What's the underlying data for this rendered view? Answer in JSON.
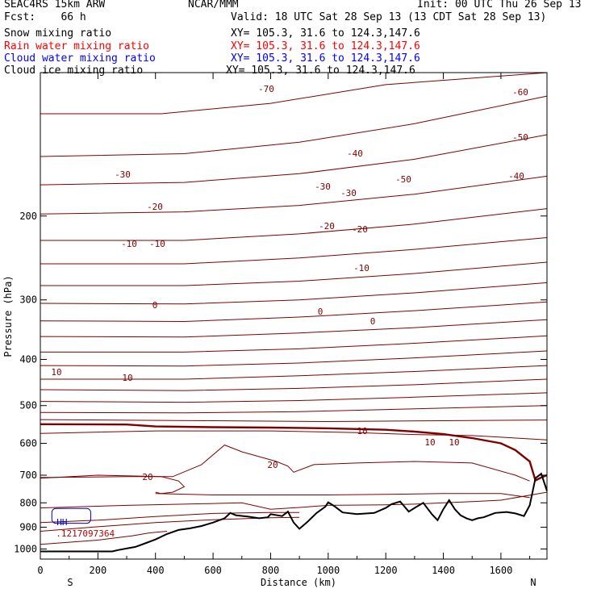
{
  "header": {
    "model": "SEAC4RS 15km ARW",
    "org": "NCAR/MMM",
    "init": "Init: 00 UTC Thu 26 Sep 13",
    "fcst": "Fcst:    66 h",
    "valid": "Valid: 18 UTC Sat 28 Sep 13 (13 CDT Sat 28 Sep 13)"
  },
  "fields": [
    {
      "name": "Snow mixing ratio",
      "xy": "XY= 105.3, 31.6 to 124.3,147.6",
      "color": "#000000"
    },
    {
      "name": "Rain water mixing ratio",
      "xy": "XY= 105.3, 31.6 to 124.3,147.6",
      "color": "#ff0000"
    },
    {
      "name": "Cloud water mixing ratio",
      "xy": "XY= 105.3, 31.6 to 124.3,147.6",
      "color": "#0000ff"
    },
    {
      "name": "Cloud ice mixing ratio",
      "xy": "XY= 105.3, 31.6 to 124.3,147.6",
      "color": "#000000"
    }
  ],
  "chart_data": {
    "type": "line",
    "xlabel": "Distance (km)",
    "ylabel": "Pressure (hPa)",
    "xlim": [
      0,
      1760
    ],
    "ylim": [
      1050,
      100
    ],
    "xticks": [
      "0",
      "200",
      "400",
      "600",
      "800",
      "1000",
      "1200",
      "1400",
      "1600"
    ],
    "yticks": [
      "200",
      "300",
      "400",
      "500",
      "600",
      "700",
      "800",
      "900",
      "1000"
    ],
    "ends": {
      "left": "S",
      "right": "N"
    },
    "contour_color": "#800000",
    "terrain_color": "#000000",
    "freezing_level_value": "0",
    "cloud_box": {
      "label": "HH",
      "value": ".1217097364",
      "x_range": [
        40,
        175
      ],
      "p_range": [
        822,
        883
      ],
      "color": "#0000cc"
    },
    "contour_labels": [
      "-70",
      "-60",
      "-50",
      "-50",
      "-40",
      "-40",
      "-30",
      "-30",
      "-30",
      "-20",
      "-20",
      "-20",
      "-10",
      "-10",
      "-10",
      "0",
      "0",
      "0",
      "10",
      "10",
      "10",
      "10",
      "10",
      "20",
      "20"
    ],
    "terrain": {
      "x": [
        0,
        250,
        270,
        330,
        360,
        400,
        440,
        480,
        520,
        560,
        600,
        640,
        660,
        680,
        720,
        760,
        790,
        800,
        840,
        860,
        880,
        900,
        930,
        960,
        990,
        1000,
        1020,
        1050,
        1100,
        1160,
        1200,
        1220,
        1250,
        1280,
        1300,
        1330,
        1360,
        1380,
        1400,
        1420,
        1440,
        1460,
        1480,
        1500,
        1520,
        1540,
        1580,
        1620,
        1650,
        1680,
        1700,
        1720,
        1740,
        1760
      ],
      "p": [
        1012,
        1012,
        1005,
        990,
        975,
        955,
        930,
        912,
        905,
        895,
        880,
        862,
        840,
        850,
        855,
        862,
        858,
        845,
        853,
        835,
        880,
        907,
        875,
        840,
        815,
        798,
        812,
        838,
        845,
        840,
        820,
        805,
        795,
        835,
        820,
        800,
        845,
        870,
        825,
        790,
        825,
        850,
        862,
        870,
        862,
        858,
        840,
        836,
        842,
        853,
        810,
        710,
        695,
        755
      ]
    },
    "contours": [
      {
        "label": "-70",
        "x": [
          0,
          420,
          800,
          1200,
          1760
        ],
        "p": [
          122,
          122,
          116,
          106,
          92
        ]
      },
      {
        "label": "-70/-60",
        "x": [
          0,
          500,
          900,
          1300,
          1760
        ],
        "p": [
          150,
          148,
          140,
          128,
          112
        ]
      },
      {
        "label": "-60",
        "x": [
          0,
          500,
          900,
          1300,
          1760
        ],
        "p": [
          172,
          170,
          163,
          152,
          135
        ]
      },
      {
        "label": "-60",
        "x": [
          0,
          500,
          900,
          1300,
          1760
        ],
        "p": [
          198,
          196,
          190,
          180,
          165
        ]
      },
      {
        "label": "-50",
        "x": [
          0,
          500,
          900,
          1300,
          1760
        ],
        "p": [
          225,
          225,
          218,
          208,
          193
        ]
      },
      {
        "label": "-50",
        "x": [
          0,
          500,
          900,
          1300,
          1760
        ],
        "p": [
          252,
          252,
          245,
          235,
          222
        ]
      },
      {
        "label": "-40",
        "x": [
          0,
          500,
          900,
          1300,
          1760
        ],
        "p": [
          280,
          280,
          274,
          264,
          250
        ]
      },
      {
        "label": "-40",
        "x": [
          0,
          500,
          900,
          1300,
          1760
        ],
        "p": [
          305,
          306,
          300,
          290,
          276
        ]
      },
      {
        "label": "-30",
        "x": [
          0,
          500,
          900,
          1300,
          1760
        ],
        "p": [
          332,
          333,
          326,
          316,
          303
        ]
      },
      {
        "label": "-30",
        "x": [
          0,
          500,
          900,
          1300,
          1760
        ],
        "p": [
          358,
          359,
          352,
          343,
          330
        ]
      },
      {
        "label": "-20",
        "x": [
          0,
          500,
          900,
          1300,
          1760
        ],
        "p": [
          386,
          386,
          380,
          370,
          357
        ]
      },
      {
        "label": "-20",
        "x": [
          0,
          500,
          900,
          1300,
          1760
        ],
        "p": [
          412,
          413,
          407,
          397,
          384
        ]
      },
      {
        "label": "-10",
        "x": [
          0,
          500,
          900,
          1300,
          1760
        ],
        "p": [
          440,
          440,
          433,
          424,
          412
        ]
      },
      {
        "label": "-10",
        "x": [
          0,
          500,
          900,
          1300,
          1760
        ],
        "p": [
          463,
          465,
          460,
          452,
          440
        ]
      },
      {
        "label": "-10",
        "x": [
          0,
          500,
          900,
          1300,
          1760
        ],
        "p": [
          490,
          492,
          488,
          480,
          470
        ]
      },
      {
        "label": "-10",
        "x": [
          0,
          500,
          900,
          1300,
          1760
        ],
        "p": [
          517,
          518,
          515,
          508,
          500
        ]
      },
      {
        "label": "-10",
        "x": [
          0,
          600,
          1000,
          1400,
          1760
        ],
        "p": [
          535,
          538,
          540,
          538,
          536
        ]
      },
      {
        "label": "0",
        "x": [
          0,
          300,
          400,
          600,
          800,
          1000,
          1100,
          1200,
          1300,
          1400,
          1500,
          1600,
          1650,
          1700,
          1720,
          1740,
          1760
        ],
        "p": [
          547,
          548,
          553,
          555,
          556,
          558,
          560,
          562,
          567,
          574,
          585,
          600,
          620,
          655,
          718,
          708,
          700
        ],
        "bold": true
      },
      {
        "label": "0",
        "x": [
          0,
          400,
          800,
          1100,
          1300,
          1500,
          1760
        ],
        "p": [
          572,
          565,
          565,
          570,
          575,
          578,
          590
        ]
      },
      {
        "label": "10",
        "x": [
          0,
          300,
          420,
          460,
          560,
          640,
          700,
          760,
          820,
          860,
          880,
          950,
          1100,
          1300,
          1500,
          1650,
          1700
        ],
        "p": [
          708,
          705,
          705,
          705,
          665,
          605,
          625,
          640,
          655,
          670,
          690,
          665,
          660,
          655,
          660,
          700,
          720
        ]
      },
      {
        "label": "10",
        "x": [
          0,
          200,
          420,
          480,
          500,
          460,
          420,
          400
        ],
        "p": [
          710,
          700,
          705,
          720,
          740,
          760,
          765,
          760
        ]
      },
      {
        "label": "10",
        "x": [
          400,
          600,
          800,
          1000,
          1200,
          1400,
          1600,
          1700
        ],
        "p": [
          765,
          770,
          770,
          770,
          768,
          765,
          765,
          780
        ]
      },
      {
        "label": "10",
        "x": [
          0,
          300,
          500,
          700,
          800,
          900,
          1000,
          1200,
          1300,
          1400,
          1500,
          1600,
          1760
        ],
        "p": [
          820,
          810,
          805,
          800,
          825,
          818,
          810,
          808,
          805,
          800,
          795,
          790,
          760
        ]
      },
      {
        "label": "20",
        "x": [
          0,
          200,
          400,
          600,
          800,
          900
        ],
        "p": [
          880,
          870,
          855,
          842,
          838,
          838
        ]
      },
      {
        "label": "20",
        "x": [
          0,
          200,
          400,
          600,
          800,
          900
        ],
        "p": [
          918,
          898,
          880,
          868,
          860,
          858
        ]
      },
      {
        "label": "20",
        "x": [
          0,
          200,
          320,
          380,
          440
        ],
        "p": [
          978,
          958,
          938,
          925,
          918
        ]
      }
    ]
  }
}
